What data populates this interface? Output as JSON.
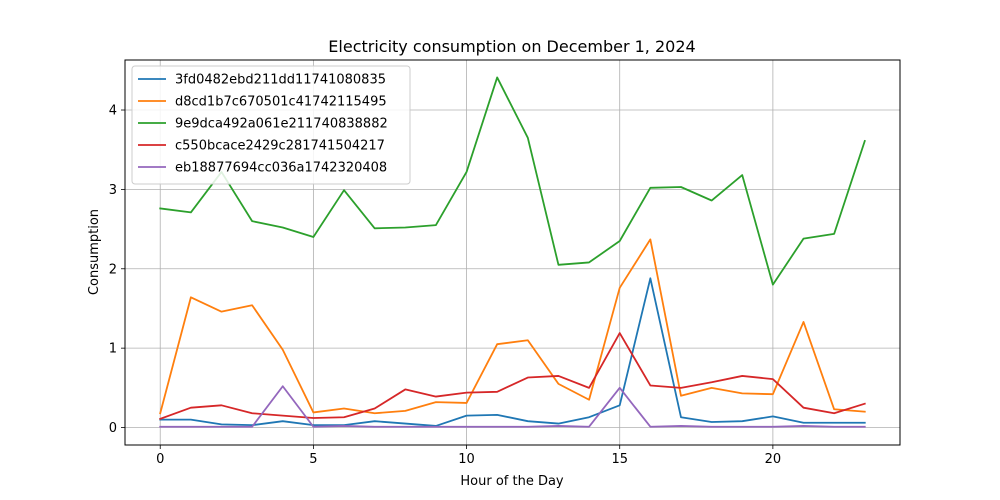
{
  "chart_data": {
    "type": "line",
    "title": "Electricity consumption on December 1, 2024",
    "xlabel": "Hour of the Day",
    "ylabel": "Consumption",
    "x": [
      0,
      1,
      2,
      3,
      4,
      5,
      6,
      7,
      8,
      9,
      10,
      11,
      12,
      13,
      14,
      15,
      16,
      17,
      18,
      19,
      20,
      21,
      22,
      23
    ],
    "xlim": [
      -1.15,
      24.15
    ],
    "ylim": [
      -0.22,
      4.63
    ],
    "xticks": [
      0,
      5,
      10,
      15,
      20
    ],
    "yticks": [
      0,
      1,
      2,
      3,
      4
    ],
    "grid": true,
    "legend_position": "top-left",
    "series": [
      {
        "name": "3fd0482ebd211dd11741080835",
        "color": "#1f77b4",
        "values": [
          0.1,
          0.1,
          0.04,
          0.03,
          0.08,
          0.03,
          0.03,
          0.08,
          0.05,
          0.02,
          0.15,
          0.16,
          0.08,
          0.05,
          0.13,
          0.28,
          1.88,
          0.13,
          0.07,
          0.08,
          0.14,
          0.06,
          0.06,
          0.06
        ]
      },
      {
        "name": "d8cd1b7c670501c41742115495",
        "color": "#ff7f0e",
        "values": [
          0.18,
          1.64,
          1.46,
          1.54,
          0.98,
          0.19,
          0.24,
          0.18,
          0.21,
          0.32,
          0.31,
          1.05,
          1.1,
          0.55,
          0.35,
          1.76,
          2.37,
          0.4,
          0.5,
          0.43,
          0.42,
          1.33,
          0.23,
          0.2
        ]
      },
      {
        "name": "9e9dca492a061e211740838882",
        "color": "#2ca02c",
        "values": [
          2.76,
          2.71,
          3.22,
          2.6,
          2.52,
          2.4,
          2.99,
          2.51,
          2.52,
          2.55,
          3.22,
          4.41,
          3.65,
          2.05,
          2.08,
          2.35,
          3.02,
          3.03,
          2.86,
          3.18,
          1.8,
          2.38,
          2.44,
          3.61
        ]
      },
      {
        "name": "c550bcace2429c281741504217",
        "color": "#d62728",
        "values": [
          0.11,
          0.25,
          0.28,
          0.18,
          0.15,
          0.12,
          0.13,
          0.24,
          0.48,
          0.39,
          0.44,
          0.45,
          0.63,
          0.65,
          0.5,
          1.19,
          0.53,
          0.5,
          0.57,
          0.65,
          0.61,
          0.25,
          0.18,
          0.3
        ]
      },
      {
        "name": "eb18877694cc036a1742320408",
        "color": "#9467bd",
        "values": [
          0.01,
          0.01,
          0.01,
          0.01,
          0.52,
          0.01,
          0.02,
          0.01,
          0.01,
          0.01,
          0.01,
          0.01,
          0.01,
          0.02,
          0.01,
          0.5,
          0.01,
          0.02,
          0.01,
          0.01,
          0.01,
          0.02,
          0.01,
          0.01
        ]
      }
    ]
  }
}
